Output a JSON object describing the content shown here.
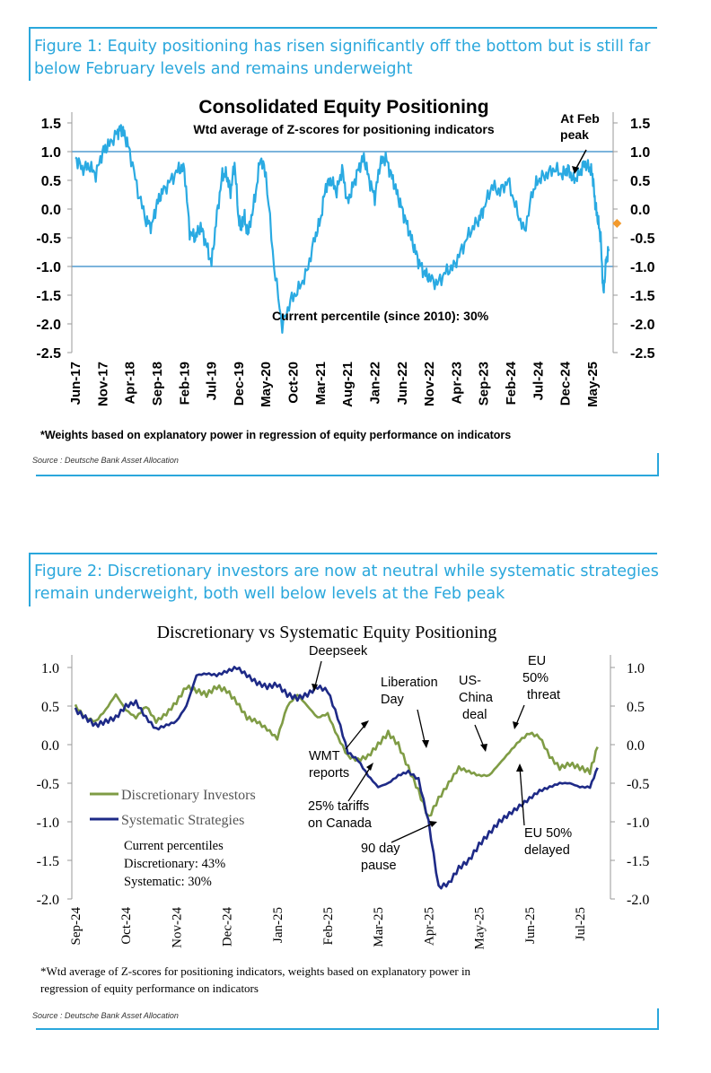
{
  "figure1": {
    "caption": "Figure 1: Equity positioning has risen significantly off the bottom but is still far below February levels and remains underweight",
    "source": "Source : Deutsche Bank Asset Allocation",
    "footnote": "*Weights based on explanatory power in regression of equity performance on indicators",
    "colors": {
      "line": "#2aaae2",
      "refline": "#2f86c8",
      "marker": "#f39a2c",
      "caption": "#2aa7dc"
    }
  },
  "figure2": {
    "caption": "Figure 2: Discretionary investors are now at neutral while systematic strategies remain underweight, both well below levels at the Feb peak",
    "source": "Source : Deutsche Bank Asset Allocation",
    "footnote_line1": "*Wtd average of Z-scores for positioning indicators, weights based on explanatory power in",
    "footnote_line2": "regression of equity performance on indicators",
    "colors": {
      "discretionary": "#7f9c45",
      "systematic": "#1e2a87"
    }
  },
  "chart_data": [
    {
      "type": "line",
      "title": "Consolidated Equity Positioning",
      "subtitle": "Wtd average of Z-scores for positioning indicators",
      "xlabel": "",
      "ylabel": "",
      "ylim": [
        -2.5,
        1.5
      ],
      "yticks": [
        1.5,
        1.0,
        0.5,
        0.0,
        -0.5,
        -1.0,
        -1.5,
        -2.0,
        -2.5
      ],
      "ytick_labels": [
        "1.5",
        "1.0",
        "0.5",
        "0.0",
        "-0.5",
        "-1.0",
        "-1.5",
        "-2.0",
        "-2.5"
      ],
      "reference_lines": [
        1.0,
        -1.0
      ],
      "categories": [
        "Jun-17",
        "Nov-17",
        "Apr-18",
        "Sep-18",
        "Feb-19",
        "Jul-19",
        "Dec-19",
        "May-20",
        "Oct-20",
        "Mar-21",
        "Aug-21",
        "Jan-22",
        "Jun-22",
        "Nov-22",
        "Apr-23",
        "Sep-23",
        "Feb-24",
        "Jul-24",
        "Dec-24",
        "May-25"
      ],
      "series": [
        {
          "name": "Consolidated Equity Positioning",
          "x": [
            0,
            0.25,
            0.5,
            0.75,
            1,
            1.2,
            1.5,
            1.65,
            1.8,
            2,
            2.3,
            2.6,
            2.8,
            3,
            3.2,
            3.5,
            3.8,
            4,
            4.2,
            4.4,
            4.6,
            4.8,
            5,
            5.2,
            5.4,
            5.55,
            5.7,
            5.85,
            6,
            6.1,
            6.2,
            6.3,
            6.4,
            6.6,
            6.8,
            7,
            7.3,
            7.6,
            7.9,
            8.2,
            8.5,
            8.8,
            9,
            9.2,
            9.4,
            9.6,
            9.8,
            10,
            10.2,
            10.4,
            10.6,
            10.8,
            11,
            11.2,
            11.4,
            11.6,
            11.8,
            12,
            12.2,
            12.4,
            12.6,
            12.8,
            13,
            13.3,
            13.6,
            13.9,
            14.2,
            14.5,
            14.8,
            15,
            15.3,
            15.6,
            15.9,
            16.2,
            16.5,
            16.8,
            17,
            17.3,
            17.6,
            17.9,
            18.1,
            18.3,
            18.5,
            18.7,
            18.9,
            19,
            19.1,
            19.2,
            19.3,
            19.4,
            19.5,
            19.6
          ],
          "values": [
            0.9,
            0.7,
            0.75,
            0.6,
            1.0,
            1.1,
            1.3,
            1.4,
            1.3,
            1.0,
            0.3,
            -0.2,
            -0.3,
            0.1,
            0.3,
            0.5,
            0.7,
            0.7,
            -0.4,
            -0.5,
            -0.3,
            -0.6,
            -0.95,
            -0.1,
            0.6,
            0.6,
            0.3,
            0.8,
            -0.2,
            -0.3,
            -0.1,
            -0.4,
            -0.3,
            0.2,
            0.9,
            0.6,
            -1.0,
            -2.05,
            -1.6,
            -1.4,
            -1.1,
            -0.5,
            -0.2,
            0.4,
            0.5,
            0.3,
            0.7,
            0.1,
            0.4,
            0.7,
            0.9,
            0.5,
            0.2,
            0.8,
            0.9,
            0.6,
            0.3,
            0.0,
            -0.3,
            -0.6,
            -0.9,
            -1.1,
            -1.2,
            -1.3,
            -1.1,
            -1.0,
            -0.7,
            -0.4,
            -0.2,
            0.0,
            0.4,
            0.3,
            0.5,
            0.0,
            -0.4,
            0.3,
            0.5,
            0.6,
            0.7,
            0.6,
            0.7,
            0.5,
            0.6,
            0.8,
            0.7,
            0.6,
            0.1,
            -0.2,
            -0.5,
            -1.5,
            -0.9,
            -0.7
          ]
        }
      ],
      "current_marker": {
        "x": 19.9,
        "value": -0.25
      },
      "annotations": [
        {
          "text_line1": "At Feb",
          "text_line2": "peak"
        },
        {
          "text": "Current percentile (since 2010): 30%"
        }
      ]
    },
    {
      "type": "line",
      "title": "Discretionary  vs Systematic Equity Positioning",
      "xlabel": "",
      "ylabel": "",
      "ylim": [
        -2.0,
        1.0
      ],
      "yticks": [
        1.0,
        0.5,
        0.0,
        -0.5,
        -1.0,
        -1.5,
        -2.0
      ],
      "ytick_labels": [
        "1.0",
        "0.5",
        "0.0",
        "-0.5",
        "-1.0",
        "-1.5",
        "-2.0"
      ],
      "categories": [
        "Sep-24",
        "Oct-24",
        "Nov-24",
        "Dec-24",
        "Jan-25",
        "Feb-25",
        "Mar-25",
        "Apr-25",
        "May-25",
        "Jun-25",
        "Jul-25"
      ],
      "series": [
        {
          "name": "Discretionary Investors",
          "x": [
            0,
            0.2,
            0.4,
            0.6,
            0.8,
            1.0,
            1.2,
            1.4,
            1.6,
            1.8,
            2.0,
            2.2,
            2.4,
            2.6,
            2.8,
            3.0,
            3.2,
            3.4,
            3.6,
            3.8,
            4.0,
            4.2,
            4.4,
            4.6,
            4.8,
            5.0,
            5.2,
            5.4,
            5.6,
            5.8,
            6.0,
            6.2,
            6.4,
            6.6,
            6.8,
            7.0,
            7.2,
            7.4,
            7.6,
            7.8,
            8.0,
            8.2,
            8.4,
            8.6,
            8.8,
            9.0,
            9.2,
            9.4,
            9.6,
            9.8,
            10.0,
            10.2,
            10.35
          ],
          "values": [
            0.5,
            0.35,
            0.3,
            0.45,
            0.65,
            0.45,
            0.35,
            0.5,
            0.3,
            0.4,
            0.55,
            0.75,
            0.7,
            0.65,
            0.75,
            0.7,
            0.55,
            0.35,
            0.3,
            0.2,
            0.08,
            0.5,
            0.65,
            0.5,
            0.35,
            0.4,
            0.1,
            -0.15,
            -0.2,
            -0.15,
            0.0,
            0.15,
            0.0,
            -0.3,
            -0.6,
            -0.95,
            -0.7,
            -0.5,
            -0.3,
            -0.35,
            -0.4,
            -0.4,
            -0.25,
            -0.1,
            0.05,
            0.15,
            0.1,
            -0.15,
            -0.3,
            -0.25,
            -0.3,
            -0.35,
            -0.03
          ]
        },
        {
          "name": "Systematic Strategies",
          "x": [
            0,
            0.2,
            0.4,
            0.6,
            0.8,
            1.0,
            1.2,
            1.4,
            1.6,
            1.8,
            2.0,
            2.2,
            2.4,
            2.6,
            2.8,
            3.0,
            3.2,
            3.4,
            3.6,
            3.8,
            4.0,
            4.2,
            4.4,
            4.6,
            4.8,
            5.0,
            5.2,
            5.4,
            5.6,
            5.8,
            6.0,
            6.2,
            6.4,
            6.6,
            6.8,
            7.0,
            7.2,
            7.4,
            7.6,
            7.8,
            8.0,
            8.2,
            8.4,
            8.6,
            8.8,
            9.0,
            9.2,
            9.4,
            9.6,
            9.8,
            10.0,
            10.2,
            10.35
          ],
          "values": [
            0.45,
            0.35,
            0.25,
            0.3,
            0.35,
            0.5,
            0.55,
            0.35,
            0.2,
            0.25,
            0.3,
            0.5,
            0.9,
            0.92,
            0.9,
            0.95,
            1.0,
            0.9,
            0.8,
            0.75,
            0.78,
            0.65,
            0.6,
            0.65,
            0.75,
            0.7,
            0.35,
            -0.1,
            -0.2,
            -0.4,
            -0.55,
            -0.5,
            -0.4,
            -0.35,
            -0.45,
            -1.0,
            -1.85,
            -1.8,
            -1.6,
            -1.5,
            -1.3,
            -1.15,
            -1.0,
            -0.9,
            -0.8,
            -0.7,
            -0.6,
            -0.55,
            -0.5,
            -0.5,
            -0.55,
            -0.55,
            -0.3
          ]
        }
      ],
      "annotations": [
        {
          "name": "deepseek",
          "text_line1": "Deepseek"
        },
        {
          "name": "wmt",
          "text_line1": "WMT",
          "text_line2": "reports"
        },
        {
          "name": "tariffs",
          "text_line1": "25% tariffs",
          "text_line2": "on Canada"
        },
        {
          "name": "liberation",
          "text_line1": "Liberation",
          "text_line2": "Day"
        },
        {
          "name": "pause",
          "text_line1": "90 day",
          "text_line2": "pause"
        },
        {
          "name": "uschina",
          "text_line1": "US-",
          "text_line2": "China",
          "text_line3": "deal"
        },
        {
          "name": "eu-threat",
          "text_line1": "EU",
          "text_line2": "50%",
          "text_line3": "threat"
        },
        {
          "name": "eu-delayed",
          "text_line1": "EU 50%",
          "text_line2": "delayed"
        }
      ],
      "percentiles": {
        "header": "Current percentiles",
        "discretionary": "Discretionary: 43%",
        "systematic": "Systematic: 30%"
      }
    }
  ]
}
